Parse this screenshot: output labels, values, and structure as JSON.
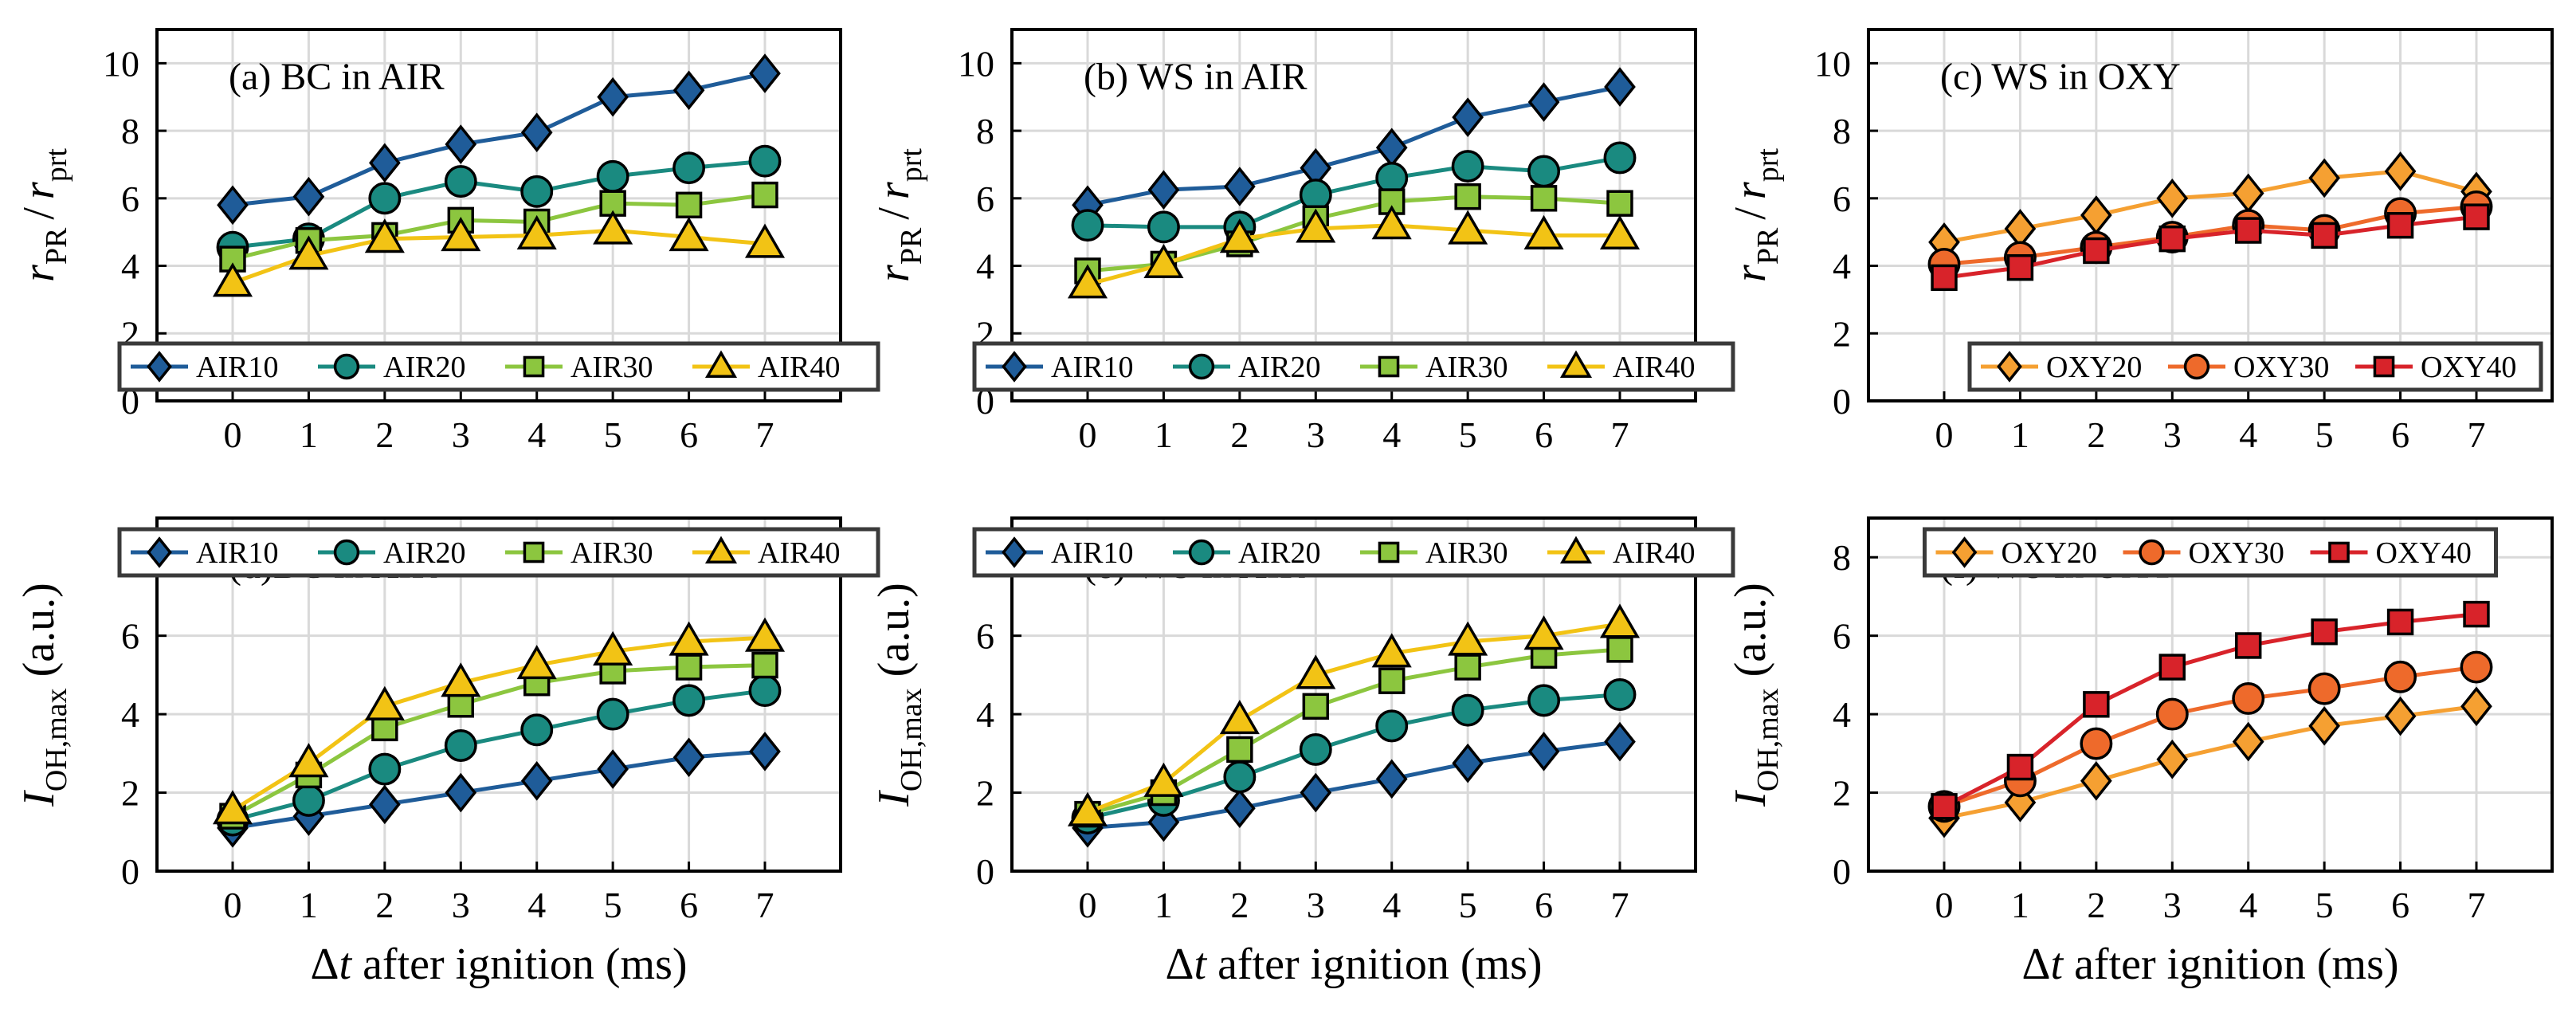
{
  "figure": {
    "x_axis_label_prefix": "Δ",
    "x_axis_label_var": "t",
    "x_axis_label_rest": " after ignition (ms)"
  },
  "chart_data": [
    {
      "id": "a",
      "type": "line",
      "title": "(a) BC in AIR",
      "ylabel": {
        "main": "r",
        "sub": "PR",
        "sep": "/",
        "main2": "r",
        "sub2": "prt"
      },
      "x": [
        0,
        1,
        2,
        3,
        4,
        5,
        6,
        7
      ],
      "xticks": [
        "0",
        "1",
        "2",
        "3",
        "4",
        "5",
        "6",
        "7"
      ],
      "ylim": [
        0,
        11
      ],
      "yticks": [
        "0",
        "2",
        "4",
        "6",
        "8",
        "10"
      ],
      "grid": true,
      "legend_position": "bottom",
      "series": [
        {
          "name": "AIR10",
          "color": "#1f5c99",
          "marker": "diamond",
          "values": [
            5.8,
            6.05,
            7.05,
            7.6,
            7.95,
            9.0,
            9.2,
            9.7
          ]
        },
        {
          "name": "AIR20",
          "color": "#1a8a80",
          "marker": "circle",
          "values": [
            4.55,
            4.8,
            6.0,
            6.5,
            6.2,
            6.65,
            6.9,
            7.1
          ]
        },
        {
          "name": "AIR30",
          "color": "#8cc63f",
          "marker": "square",
          "values": [
            4.2,
            4.75,
            4.9,
            5.35,
            5.3,
            5.85,
            5.8,
            6.1
          ]
        },
        {
          "name": "AIR40",
          "color": "#f2c315",
          "marker": "triangle",
          "values": [
            3.5,
            4.3,
            4.8,
            4.85,
            4.9,
            5.05,
            4.85,
            4.65
          ]
        }
      ]
    },
    {
      "id": "b",
      "type": "line",
      "title": "(b) WS in AIR",
      "ylabel": {
        "main": "r",
        "sub": "PR",
        "sep": "/",
        "main2": "r",
        "sub2": "prt"
      },
      "x": [
        0,
        1,
        2,
        3,
        4,
        5,
        6,
        7
      ],
      "xticks": [
        "0",
        "1",
        "2",
        "3",
        "4",
        "5",
        "6",
        "7"
      ],
      "ylim": [
        0,
        11
      ],
      "yticks": [
        "0",
        "2",
        "4",
        "6",
        "8",
        "10"
      ],
      "grid": true,
      "legend_position": "bottom",
      "series": [
        {
          "name": "AIR10",
          "color": "#1f5c99",
          "marker": "diamond",
          "values": [
            5.8,
            6.25,
            6.35,
            6.9,
            7.5,
            8.4,
            8.85,
            9.3
          ]
        },
        {
          "name": "AIR20",
          "color": "#1a8a80",
          "marker": "circle",
          "values": [
            5.2,
            5.15,
            5.15,
            6.1,
            6.6,
            6.95,
            6.8,
            7.2
          ]
        },
        {
          "name": "AIR30",
          "color": "#8cc63f",
          "marker": "square",
          "values": [
            3.85,
            4.05,
            4.65,
            5.4,
            5.9,
            6.05,
            6.0,
            5.85
          ]
        },
        {
          "name": "AIR40",
          "color": "#f2c315",
          "marker": "triangle",
          "values": [
            3.45,
            4.05,
            4.8,
            5.1,
            5.2,
            5.05,
            4.9,
            4.9
          ]
        }
      ]
    },
    {
      "id": "c",
      "type": "line",
      "title": "(c) WS in OXY",
      "ylabel": {
        "main": "r",
        "sub": "PR",
        "sep": "/",
        "main2": "r",
        "sub2": "prt"
      },
      "x": [
        0,
        1,
        2,
        3,
        4,
        5,
        6,
        7
      ],
      "xticks": [
        "0",
        "1",
        "2",
        "3",
        "4",
        "5",
        "6",
        "7"
      ],
      "ylim": [
        0,
        11
      ],
      "yticks": [
        "0",
        "2",
        "4",
        "6",
        "8",
        "10"
      ],
      "grid": true,
      "legend_position": "bottom-right",
      "series": [
        {
          "name": "OXY20",
          "color": "#f5a032",
          "marker": "diamond",
          "values": [
            4.7,
            5.1,
            5.5,
            6.0,
            6.15,
            6.6,
            6.8,
            6.2
          ]
        },
        {
          "name": "OXY30",
          "color": "#ee6a2b",
          "marker": "circle",
          "values": [
            4.05,
            4.25,
            4.55,
            4.85,
            5.2,
            5.05,
            5.55,
            5.75
          ]
        },
        {
          "name": "OXY40",
          "color": "#d8232a",
          "marker": "square",
          "values": [
            3.65,
            3.95,
            4.45,
            4.8,
            5.05,
            4.9,
            5.2,
            5.45
          ]
        }
      ]
    },
    {
      "id": "d",
      "type": "line",
      "title": "(d)BC in AIR",
      "ylabel": {
        "main": "I",
        "sub": "OH,max",
        "unit": " (a.u.)"
      },
      "x": [
        0,
        1,
        2,
        3,
        4,
        5,
        6,
        7
      ],
      "xticks": [
        "0",
        "1",
        "2",
        "3",
        "4",
        "5",
        "6",
        "7"
      ],
      "ylim": [
        0,
        9
      ],
      "yticks": [
        "0",
        "2",
        "4",
        "6",
        "8"
      ],
      "grid": true,
      "legend_position": "top",
      "series": [
        {
          "name": "AIR10",
          "color": "#1f5c99",
          "marker": "diamond",
          "values": [
            1.1,
            1.4,
            1.7,
            2.0,
            2.3,
            2.6,
            2.9,
            3.05
          ]
        },
        {
          "name": "AIR20",
          "color": "#1a8a80",
          "marker": "circle",
          "values": [
            1.3,
            1.8,
            2.6,
            3.2,
            3.6,
            4.0,
            4.35,
            4.6
          ]
        },
        {
          "name": "AIR30",
          "color": "#8cc63f",
          "marker": "square",
          "values": [
            1.4,
            2.45,
            3.65,
            4.25,
            4.8,
            5.1,
            5.2,
            5.25
          ]
        },
        {
          "name": "AIR40",
          "color": "#f2c315",
          "marker": "triangle",
          "values": [
            1.55,
            2.75,
            4.2,
            4.8,
            5.25,
            5.6,
            5.85,
            5.95
          ]
        }
      ]
    },
    {
      "id": "e",
      "type": "line",
      "title": "(e) WS in AIR",
      "ylabel": {
        "main": "I",
        "sub": "OH,max",
        "unit": " (a.u.)"
      },
      "x": [
        0,
        1,
        2,
        3,
        4,
        5,
        6,
        7
      ],
      "xticks": [
        "0",
        "1",
        "2",
        "3",
        "4",
        "5",
        "6",
        "7"
      ],
      "ylim": [
        0,
        9
      ],
      "yticks": [
        "0",
        "2",
        "4",
        "6",
        "8"
      ],
      "grid": true,
      "legend_position": "top",
      "series": [
        {
          "name": "AIR10",
          "color": "#1f5c99",
          "marker": "diamond",
          "values": [
            1.1,
            1.25,
            1.6,
            2.0,
            2.35,
            2.75,
            3.05,
            3.3
          ]
        },
        {
          "name": "AIR20",
          "color": "#1a8a80",
          "marker": "circle",
          "values": [
            1.35,
            1.8,
            2.4,
            3.1,
            3.7,
            4.1,
            4.35,
            4.5
          ]
        },
        {
          "name": "AIR30",
          "color": "#8cc63f",
          "marker": "square",
          "values": [
            1.45,
            2.0,
            3.1,
            4.2,
            4.85,
            5.2,
            5.5,
            5.65
          ]
        },
        {
          "name": "AIR40",
          "color": "#f2c315",
          "marker": "triangle",
          "values": [
            1.5,
            2.25,
            3.85,
            5.0,
            5.55,
            5.85,
            6.0,
            6.3
          ]
        }
      ]
    },
    {
      "id": "f",
      "type": "line",
      "title": "(f) WS in OXY",
      "ylabel": {
        "main": "I",
        "sub": "OH,max",
        "unit": " (a.u.)"
      },
      "x": [
        0,
        1,
        2,
        3,
        4,
        5,
        6,
        7
      ],
      "xticks": [
        "0",
        "1",
        "2",
        "3",
        "4",
        "5",
        "6",
        "7"
      ],
      "ylim": [
        0,
        9
      ],
      "yticks": [
        "0",
        "2",
        "4",
        "6",
        "8"
      ],
      "grid": true,
      "legend_position": "top",
      "series": [
        {
          "name": "OXY20",
          "color": "#f5a032",
          "marker": "diamond",
          "values": [
            1.35,
            1.75,
            2.3,
            2.85,
            3.3,
            3.7,
            3.95,
            4.2
          ]
        },
        {
          "name": "OXY30",
          "color": "#ee6a2b",
          "marker": "circle",
          "values": [
            1.65,
            2.3,
            3.25,
            4.0,
            4.4,
            4.65,
            4.95,
            5.2
          ]
        },
        {
          "name": "OXY40",
          "color": "#d8232a",
          "marker": "square",
          "values": [
            1.65,
            2.65,
            4.25,
            5.2,
            5.75,
            6.1,
            6.35,
            6.55
          ]
        }
      ]
    }
  ]
}
